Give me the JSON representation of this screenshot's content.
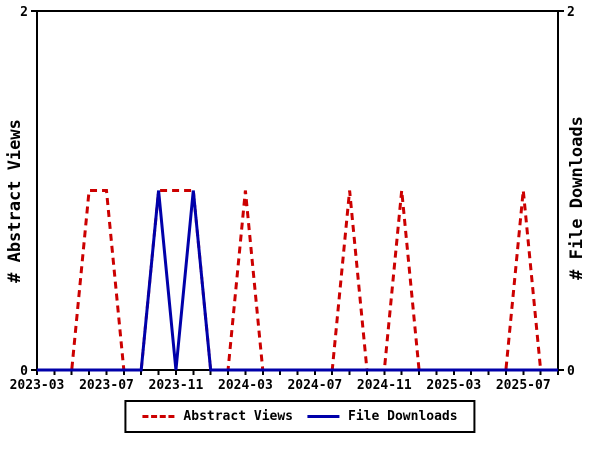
{
  "colors": {
    "background": "#ffffff",
    "axis": "#000000",
    "text": "#000000",
    "abstract_views": "#cc0000",
    "file_downloads": "#0000aa"
  },
  "chart_data": {
    "type": "line",
    "title": "",
    "xlabel": "",
    "y_left_label": "# Abstract Views",
    "y_right_label": "# File Downloads",
    "ylim": [
      0,
      2
    ],
    "y_ticks": [
      {
        "value": 0,
        "label": "0"
      },
      {
        "value": 2,
        "label": "2"
      }
    ],
    "x_major_every": 4,
    "grid": false,
    "legend_position": "bottom-center",
    "months": [
      "2023-03",
      "2023-04",
      "2023-05",
      "2023-06",
      "2023-07",
      "2023-08",
      "2023-09",
      "2023-10",
      "2023-11",
      "2023-12",
      "2024-01",
      "2024-02",
      "2024-03",
      "2024-04",
      "2024-05",
      "2024-06",
      "2024-07",
      "2024-08",
      "2024-09",
      "2024-10",
      "2024-11",
      "2024-12",
      "2025-01",
      "2025-02",
      "2025-03",
      "2025-04",
      "2025-05",
      "2025-06",
      "2025-07",
      "2025-08",
      "2025-09"
    ],
    "x_major_tick_labels": [
      "2023-03",
      "2023-07",
      "2023-11",
      "2024-03",
      "2024-07",
      "2024-11",
      "2025-03",
      "2025-07"
    ],
    "series": [
      {
        "name": "Abstract Views",
        "style": "dashed",
        "color": "#cc0000",
        "values": [
          0,
          0,
          0,
          1,
          1,
          0,
          0,
          1,
          1,
          1,
          0,
          0,
          1,
          0,
          0,
          0,
          0,
          0,
          1,
          0,
          0,
          1,
          0,
          0,
          0,
          0,
          0,
          0,
          1,
          0,
          0
        ]
      },
      {
        "name": "File Downloads",
        "style": "solid",
        "color": "#0000aa",
        "values": [
          0,
          0,
          0,
          0,
          0,
          0,
          0,
          1,
          0,
          1,
          0,
          0,
          0,
          0,
          0,
          0,
          0,
          0,
          0,
          0,
          0,
          0,
          0,
          0,
          0,
          0,
          0,
          0,
          0,
          0,
          0
        ]
      }
    ]
  }
}
